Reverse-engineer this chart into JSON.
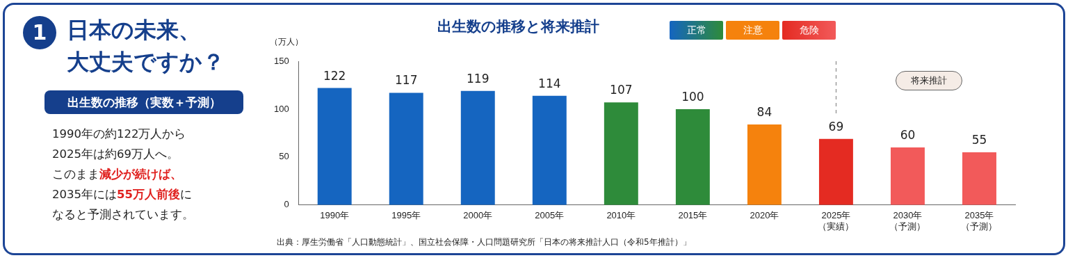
{
  "chart_data": {
    "type": "bar",
    "title": "出生数の推移と将来推計",
    "ylabel": "（万人）",
    "categories": [
      "1990年",
      "1995年",
      "2000年",
      "2005年",
      "2010年",
      "2015年",
      "2020年",
      "2025年（実績）",
      "2030年（予測）",
      "2035年（予測）"
    ],
    "series": [
      {
        "name": "正常",
        "color": "#1565c0",
        "colors": [
          "#1565c0",
          "#1565c0",
          "#1565c0",
          "#1565c0",
          "#2e8b3a",
          "#2e8b3a",
          null,
          null,
          null,
          null
        ],
        "values": [
          122,
          117,
          119,
          114,
          107,
          100,
          null,
          null,
          null,
          null
        ]
      },
      {
        "name": "注意",
        "color": "#f5820d",
        "values": [
          null,
          null,
          null,
          null,
          null,
          null,
          84,
          null,
          null,
          null
        ]
      },
      {
        "name": "危険",
        "color": "#d81e1e",
        "colors": [
          null,
          null,
          null,
          null,
          null,
          null,
          null,
          "#e42b22",
          "#f25a5a",
          "#f25a5a"
        ],
        "values": [
          null,
          null,
          null,
          null,
          null,
          null,
          null,
          69,
          60,
          55
        ]
      }
    ],
    "stacked": true,
    "data_labels": true,
    "legend": "top right",
    "grid": false,
    "ylim": [
      0,
      150
    ],
    "yticks": [
      0,
      50,
      100,
      150
    ],
    "ref_lines": [
      {
        "axis": "x",
        "value": "2025年（実績）",
        "line_style": "dashed",
        "color": "#777777"
      }
    ],
    "annotations": [
      "1",
      "日本の未来、",
      "大丈夫ですか？",
      "出生数の推移（実数＋予測）",
      "1990年の約122万人から",
      "2025年は約69万人へ。",
      "このまま",
      "減少が続けば、",
      "2035年には",
      "55万人前後",
      "に",
      "なると予測されています。",
      "将来推計",
      "出典：厚生労働省「人口動態統計」、国立社会保障・人口問題研究所「日本の将来推計人口（令和5年推計）」"
    ]
  }
}
